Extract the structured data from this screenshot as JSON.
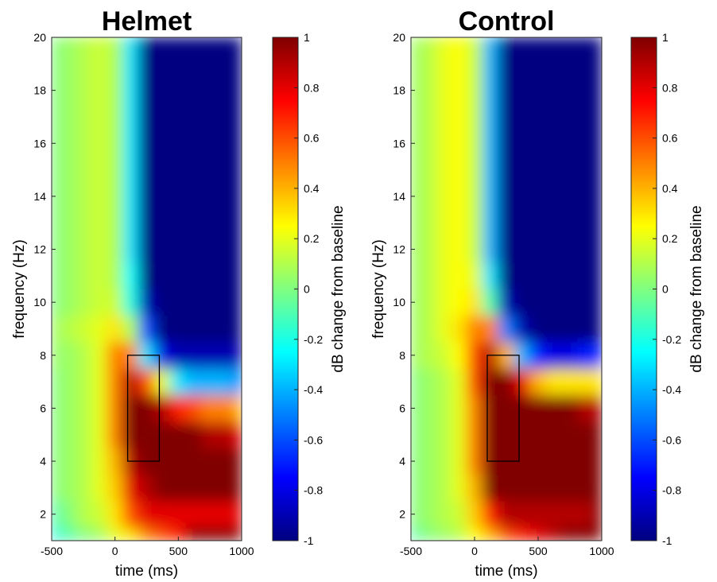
{
  "chart_data": [
    {
      "type": "heatmap",
      "title": "Helmet",
      "xlabel": "time (ms)",
      "ylabel": "frequency (Hz)",
      "x": [
        -500,
        -375,
        -250,
        -125,
        0,
        125,
        250,
        375,
        500,
        625,
        750,
        875,
        1000
      ],
      "y": [
        1,
        2,
        3,
        4,
        5,
        6,
        7,
        8,
        9,
        10,
        11,
        12,
        13,
        14,
        15,
        16,
        17,
        18,
        19,
        20
      ],
      "values": [
        [
          -0.2,
          -0.1,
          0,
          0.05,
          0.2,
          0.3,
          0.5,
          0.6,
          0.7,
          1,
          1,
          1,
          1
        ],
        [
          -0.1,
          0,
          0.1,
          0.15,
          0.3,
          0.6,
          0.8,
          0.8,
          0.8,
          0.8,
          0.8,
          0.8,
          0.8
        ],
        [
          0,
          0.05,
          0.1,
          0.2,
          0.35,
          0.8,
          0.9,
          1,
          1,
          1,
          1,
          1,
          1
        ],
        [
          0,
          0.05,
          0.1,
          0.2,
          0.4,
          0.9,
          1,
          1,
          1,
          1,
          1,
          1,
          1
        ],
        [
          0,
          0.05,
          0.1,
          0.2,
          0.5,
          1,
          1,
          1,
          1,
          1,
          0.9,
          0.9,
          0.8
        ],
        [
          0,
          0.05,
          0.1,
          0.2,
          0.5,
          1,
          1,
          0.9,
          0.7,
          0.6,
          0.5,
          0.5,
          0.4
        ],
        [
          0,
          0.05,
          0.1,
          0.2,
          0.5,
          0.9,
          0.6,
          0.2,
          -0.3,
          -0.4,
          -0.4,
          -0.4,
          -0.5
        ],
        [
          0.05,
          0.05,
          0.1,
          0.2,
          0.5,
          0.5,
          -0.3,
          -0.8,
          -0.9,
          -0.9,
          -0.9,
          -0.9,
          -0.9
        ],
        [
          0.05,
          0.1,
          0.15,
          0.2,
          0.3,
          0.1,
          -0.6,
          -1,
          -1,
          -1,
          -1,
          -1,
          -1
        ],
        [
          0,
          0.05,
          0.1,
          0.15,
          0.15,
          -0.2,
          -0.9,
          -1,
          -1,
          -1,
          -1,
          -1,
          -1
        ],
        [
          0,
          0.05,
          0.1,
          0.15,
          0.1,
          -0.25,
          -1,
          -1,
          -1,
          -1,
          -1,
          -1,
          -1
        ],
        [
          0,
          0.05,
          0.1,
          0.15,
          0.1,
          -0.3,
          -1,
          -1,
          -1,
          -1,
          -1,
          -1,
          -1
        ],
        [
          0,
          0.05,
          0.1,
          0.15,
          0.1,
          -0.3,
          -1,
          -1,
          -1,
          -1,
          -1,
          -1,
          -1
        ],
        [
          0,
          0.05,
          0.1,
          0.15,
          0.1,
          -0.3,
          -1,
          -1,
          -1,
          -1,
          -1,
          -1,
          -1
        ],
        [
          0,
          0.05,
          0.1,
          0.15,
          0.1,
          -0.3,
          -1,
          -1,
          -1,
          -1,
          -1,
          -1,
          -1
        ],
        [
          0,
          0.05,
          0.1,
          0.15,
          0.1,
          -0.3,
          -1,
          -1,
          -1,
          -1,
          -1,
          -1,
          -1
        ],
        [
          0,
          0.05,
          0.1,
          0.15,
          0.1,
          -0.3,
          -1,
          -1,
          -1,
          -1,
          -1,
          -1,
          -1
        ],
        [
          0,
          0.05,
          0.1,
          0.15,
          0.1,
          -0.3,
          -1,
          -1,
          -1,
          -1,
          -1,
          -1,
          -1
        ],
        [
          0,
          0.05,
          0.1,
          0.15,
          0.1,
          -0.3,
          -1,
          -1,
          -1,
          -1,
          -1,
          -1,
          -1
        ],
        [
          0,
          0.05,
          0.1,
          0.15,
          0.1,
          -0.3,
          -1,
          -1,
          -1,
          -1,
          -1,
          -1,
          -1
        ]
      ],
      "xlim": [
        -500,
        1000
      ],
      "xticks": [
        -500,
        0,
        500,
        1000
      ],
      "ylim": [
        1,
        20
      ],
      "yticks": [
        2,
        4,
        6,
        8,
        10,
        12,
        14,
        16,
        18,
        20
      ],
      "roi": {
        "x": [
          100,
          350
        ],
        "y": [
          4,
          8
        ]
      },
      "colorbar": {
        "label": "dB change from baseline",
        "colormap": "jet",
        "clim": [
          -1,
          1
        ],
        "ticks": [
          -1,
          -0.8,
          -0.6,
          -0.4,
          -0.2,
          0,
          0.2,
          0.4,
          0.6,
          0.8,
          1
        ]
      }
    },
    {
      "type": "heatmap",
      "title": "Control",
      "xlabel": "time (ms)",
      "ylabel": "frequency (Hz)",
      "x": [
        -500,
        -375,
        -250,
        -125,
        0,
        125,
        250,
        375,
        500,
        625,
        750,
        875,
        1000
      ],
      "y": [
        1,
        2,
        3,
        4,
        5,
        6,
        7,
        8,
        9,
        10,
        11,
        12,
        13,
        14,
        15,
        16,
        17,
        18,
        19,
        20
      ],
      "values": [
        [
          -0.1,
          0,
          0.05,
          0.1,
          0.25,
          0.4,
          0.6,
          0.7,
          0.8,
          0.9,
          1,
          1,
          1
        ],
        [
          0,
          0.05,
          0.1,
          0.15,
          0.35,
          0.7,
          0.9,
          0.9,
          0.9,
          0.9,
          0.9,
          0.9,
          1
        ],
        [
          0,
          0.05,
          0.1,
          0.2,
          0.4,
          1,
          1,
          1,
          1,
          1,
          1,
          1,
          1
        ],
        [
          0,
          0.05,
          0.1,
          0.2,
          0.5,
          1,
          1,
          1,
          1,
          1,
          1,
          1,
          1
        ],
        [
          0,
          0.05,
          0.1,
          0.2,
          0.5,
          1,
          1,
          1,
          1,
          1,
          1,
          1,
          1
        ],
        [
          0,
          0.05,
          0.1,
          0.2,
          0.5,
          1,
          1,
          1,
          1,
          1,
          1,
          0.9,
          0.9
        ],
        [
          0,
          0.05,
          0.1,
          0.2,
          0.6,
          1,
          1,
          0.8,
          0.4,
          0.3,
          0.3,
          0.3,
          0.3
        ],
        [
          0.05,
          0.1,
          0.15,
          0.25,
          0.6,
          0.9,
          0.4,
          -0.4,
          -0.7,
          -0.8,
          -0.8,
          -0.7,
          -0.7
        ],
        [
          0.05,
          0.1,
          0.2,
          0.3,
          0.5,
          0.5,
          -0.5,
          -0.9,
          -1,
          -1,
          -1,
          -1,
          -1
        ],
        [
          0.05,
          0.1,
          0.2,
          0.25,
          0.3,
          -0.1,
          -0.9,
          -1,
          -1,
          -1,
          -1,
          -1,
          -1
        ],
        [
          0.05,
          0.1,
          0.2,
          0.25,
          0.2,
          -0.3,
          -1,
          -1,
          -1,
          -1,
          -1,
          -1,
          -1
        ],
        [
          0.05,
          0.1,
          0.2,
          0.25,
          0.15,
          -0.4,
          -1,
          -1,
          -1,
          -1,
          -1,
          -1,
          -1
        ],
        [
          0.05,
          0.1,
          0.2,
          0.25,
          0.15,
          -0.4,
          -1,
          -1,
          -1,
          -1,
          -1,
          -1,
          -1
        ],
        [
          0.05,
          0.1,
          0.2,
          0.25,
          0.15,
          -0.4,
          -1,
          -1,
          -1,
          -1,
          -1,
          -1,
          -1
        ],
        [
          0.05,
          0.1,
          0.2,
          0.25,
          0.15,
          -0.4,
          -1,
          -1,
          -1,
          -1,
          -1,
          -1,
          -1
        ],
        [
          0.05,
          0.1,
          0.2,
          0.25,
          0.15,
          -0.4,
          -1,
          -1,
          -1,
          -1,
          -1,
          -1,
          -1
        ],
        [
          0.05,
          0.1,
          0.2,
          0.25,
          0.15,
          -0.4,
          -1,
          -1,
          -1,
          -1,
          -1,
          -1,
          -1
        ],
        [
          0.05,
          0.1,
          0.2,
          0.25,
          0.15,
          -0.4,
          -1,
          -1,
          -1,
          -1,
          -1,
          -1,
          -1
        ],
        [
          0.05,
          0.1,
          0.2,
          0.25,
          0.15,
          -0.4,
          -1,
          -1,
          -1,
          -1,
          -1,
          -1,
          -1
        ],
        [
          0.05,
          0.1,
          0.2,
          0.25,
          0.15,
          -0.4,
          -1,
          -1,
          -1,
          -1,
          -1,
          -1,
          -1
        ]
      ],
      "xlim": [
        -500,
        1000
      ],
      "xticks": [
        -500,
        0,
        500,
        1000
      ],
      "ylim": [
        1,
        20
      ],
      "yticks": [
        2,
        4,
        6,
        8,
        10,
        12,
        14,
        16,
        18,
        20
      ],
      "roi": {
        "x": [
          100,
          350
        ],
        "y": [
          4,
          8
        ]
      },
      "colorbar": {
        "label": "dB change from baseline",
        "colormap": "jet",
        "clim": [
          -1,
          1
        ],
        "ticks": [
          -1,
          -0.8,
          -0.6,
          -0.4,
          -0.2,
          0,
          0.2,
          0.4,
          0.6,
          0.8,
          1
        ]
      }
    }
  ]
}
